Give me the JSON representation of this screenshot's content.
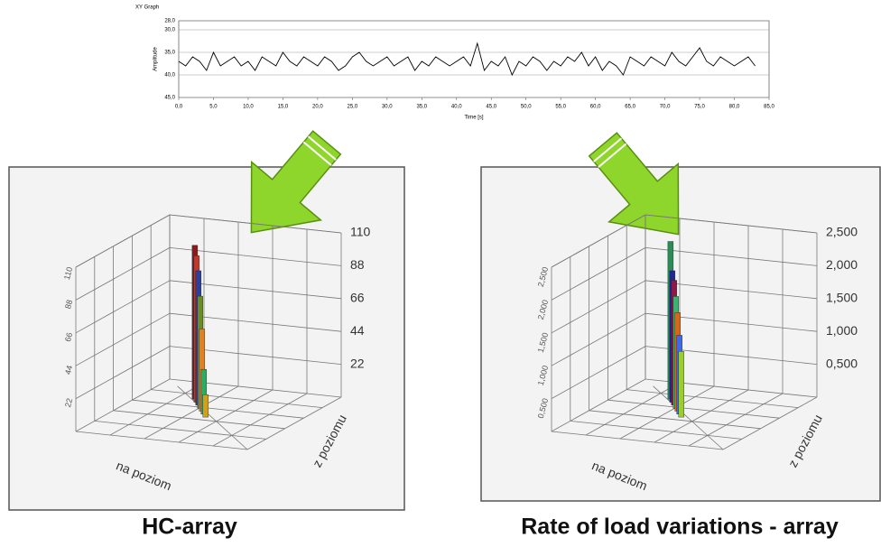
{
  "chart_data": [
    {
      "type": "line",
      "title": "XY Graph",
      "x_label": "Time [s]",
      "y_label": "Amplitude",
      "color": "#000000",
      "x": [
        0,
        1,
        2,
        3,
        4,
        5,
        6,
        7,
        8,
        9,
        10,
        11,
        12,
        13,
        14,
        15,
        16,
        17,
        18,
        19,
        20,
        21,
        22,
        23,
        24,
        25,
        26,
        27,
        28,
        29,
        30,
        31,
        32,
        33,
        34,
        35,
        36,
        37,
        38,
        39,
        40,
        41,
        42,
        43,
        44,
        45,
        46,
        47,
        48,
        49,
        50,
        51,
        52,
        53,
        54,
        55,
        56,
        57,
        58,
        59,
        60,
        61,
        62,
        63,
        64,
        65,
        66,
        67,
        68,
        69,
        70,
        71,
        72,
        73,
        74,
        75,
        76,
        77,
        78,
        79,
        80,
        81,
        82,
        83
      ],
      "values": [
        37,
        38,
        36,
        37,
        39,
        35,
        38,
        37,
        36,
        38,
        37,
        39,
        36,
        37,
        38,
        35,
        37,
        38,
        36,
        37,
        38,
        36,
        37,
        39,
        38,
        36,
        35,
        37,
        38,
        37,
        36,
        38,
        37,
        36,
        39,
        37,
        38,
        36,
        37,
        38,
        37,
        36,
        38,
        33,
        39,
        37,
        38,
        36,
        40,
        37,
        38,
        36,
        37,
        39,
        37,
        38,
        36,
        37,
        35,
        38,
        36,
        39,
        37,
        38,
        40,
        36,
        37,
        38,
        36,
        37,
        38,
        35,
        37,
        38,
        36,
        34,
        37,
        38,
        36,
        37,
        38,
        37,
        36,
        38
      ],
      "xlim": [
        0,
        85
      ],
      "ylim": [
        45,
        28
      ],
      "xticks": [
        {
          "value": 0,
          "label": "0,0"
        },
        {
          "value": 5,
          "label": "5,0"
        },
        {
          "value": 10,
          "label": "10,0"
        },
        {
          "value": 15,
          "label": "15,0"
        },
        {
          "value": 20,
          "label": "20,0"
        },
        {
          "value": 25,
          "label": "25,0"
        },
        {
          "value": 30,
          "label": "30,0"
        },
        {
          "value": 35,
          "label": "35,0"
        },
        {
          "value": 40,
          "label": "40,0"
        },
        {
          "value": 45,
          "label": "45,0"
        },
        {
          "value": 50,
          "label": "50,0"
        },
        {
          "value": 55,
          "label": "55,0"
        },
        {
          "value": 60,
          "label": "60,0"
        },
        {
          "value": 65,
          "label": "65,0"
        },
        {
          "value": 70,
          "label": "70,0"
        },
        {
          "value": 75,
          "label": "75,0"
        },
        {
          "value": 80,
          "label": "80,0"
        },
        {
          "value": 85,
          "label": "85,0"
        }
      ],
      "yticks": [
        {
          "value": 28,
          "label": "28,0"
        },
        {
          "value": 30,
          "label": "30,0"
        },
        {
          "value": 35,
          "label": "35,0"
        },
        {
          "value": 40,
          "label": "40,0"
        },
        {
          "value": 45,
          "label": "45,0"
        }
      ],
      "grid": true
    },
    {
      "type": "bar3d",
      "title": "HC-array",
      "x_label": "na poziom",
      "y_label": "z poziomu",
      "zlim": [
        0,
        110
      ],
      "zticks": [
        22,
        44,
        66,
        88,
        110
      ],
      "values": [
        103,
        98,
        90,
        75,
        55,
        30,
        15
      ],
      "colors": [
        "#8b1a1a",
        "#c0392b",
        "#2c3e9e",
        "#6b8e23",
        "#e67e22",
        "#27ae60",
        "#d4a017"
      ]
    },
    {
      "type": "bar3d",
      "title": "Rate of load variations - array",
      "x_label": "na poziom",
      "y_label": "z poziomu",
      "zlim": [
        0,
        2.5
      ],
      "zticks": [
        {
          "value": 0.5,
          "label": "0,500"
        },
        {
          "value": 1,
          "label": "1,000"
        },
        {
          "value": 1.5,
          "label": "1,500"
        },
        {
          "value": 2,
          "label": "2,000"
        },
        {
          "value": 2.5,
          "label": "2,500"
        }
      ],
      "values": [
        2.4,
        2.0,
        1.9,
        1.7,
        1.5,
        1.2,
        1.0
      ],
      "colors": [
        "#2e8b57",
        "#1f2a8c",
        "#8b1a4a",
        "#3cb371",
        "#d2691e",
        "#4169e1",
        "#9acd32"
      ]
    }
  ]
}
